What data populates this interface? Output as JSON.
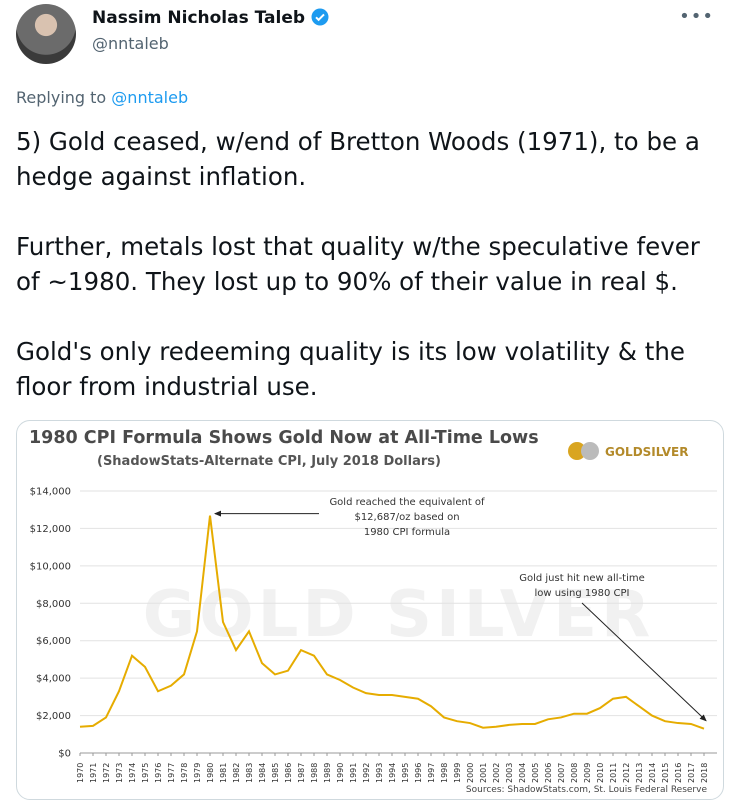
{
  "tweet": {
    "author": "Nassim Nicholas Taleb",
    "handle": "@nntaleb",
    "replying_prefix": "Replying to",
    "replying_to": "@nntaleb",
    "paragraphs": [
      "5) Gold ceased, w/end of Bretton Woods (1971), to be a hedge against inflation.",
      "Further, metals lost that quality w/the speculative fever of ~1980. They lost up to 90% of their value in real $.",
      "Gold's only redeeming quality is its low volatility & the floor from industrial use."
    ]
  },
  "chart_data": {
    "type": "line",
    "title": "1980 CPI Formula Shows Gold Now at All-Time Lows",
    "subtitle": "(ShadowStats-Alternate CPI, July 2018 Dollars)",
    "logo": "GOLDSILVER",
    "watermark": "GOLD SILVER",
    "source": "Sources: ShadowStats.com, St. Louis Federal Reserve",
    "annotations": [
      {
        "lines": [
          "Gold reached the equivalent of",
          "$12,687/oz based on",
          "1980 CPI formula"
        ]
      },
      {
        "lines": [
          "Gold just hit new all-time",
          "low using 1980 CPI"
        ]
      }
    ],
    "x": [
      1970,
      1971,
      1972,
      1973,
      1974,
      1975,
      1976,
      1977,
      1978,
      1979,
      1980,
      1981,
      1982,
      1983,
      1984,
      1985,
      1986,
      1987,
      1988,
      1989,
      1990,
      1991,
      1992,
      1993,
      1994,
      1995,
      1996,
      1997,
      1998,
      1999,
      2000,
      2001,
      2002,
      2003,
      2004,
      2005,
      2006,
      2007,
      2008,
      2009,
      2010,
      2011,
      2012,
      2013,
      2014,
      2015,
      2016,
      2017,
      2018
    ],
    "series": [
      {
        "name": "Gold",
        "color": "#e6ac00",
        "values": [
          1400,
          1450,
          1900,
          3300,
          5200,
          4600,
          3300,
          3600,
          4200,
          6500,
          12687,
          7000,
          5500,
          6500,
          4800,
          4200,
          4400,
          5500,
          5200,
          4200,
          3900,
          3500,
          3200,
          3100,
          3100,
          3000,
          2900,
          2500,
          1900,
          1700,
          1600,
          1350,
          1400,
          1500,
          1550,
          1550,
          1800,
          1900,
          2100,
          2100,
          2400,
          2900,
          3000,
          2500,
          2000,
          1700,
          1600,
          1550,
          1300
        ]
      }
    ],
    "xlim": [
      1970,
      2019
    ],
    "xticks": [
      1970,
      1971,
      1972,
      1973,
      1974,
      1975,
      1976,
      1977,
      1978,
      1979,
      1980,
      1981,
      1982,
      1983,
      1984,
      1985,
      1986,
      1987,
      1988,
      1989,
      1990,
      1991,
      1992,
      1993,
      1994,
      1995,
      1996,
      1997,
      1998,
      1999,
      2000,
      2001,
      2002,
      2003,
      2004,
      2005,
      2006,
      2007,
      2008,
      2009,
      2010,
      2011,
      2012,
      2013,
      2014,
      2015,
      2016,
      2017,
      2018
    ],
    "ylim": [
      0,
      14000
    ],
    "yticks": [
      {
        "value": 0,
        "label": "$0"
      },
      {
        "value": 2000,
        "label": "$2,000"
      },
      {
        "value": 4000,
        "label": "$4,000"
      },
      {
        "value": 6000,
        "label": "$6,000"
      },
      {
        "value": 8000,
        "label": "$8,000"
      },
      {
        "value": 10000,
        "label": "$10,000"
      },
      {
        "value": 12000,
        "label": "$12,000"
      },
      {
        "value": 14000,
        "label": "$14,000"
      }
    ],
    "grid": true
  }
}
